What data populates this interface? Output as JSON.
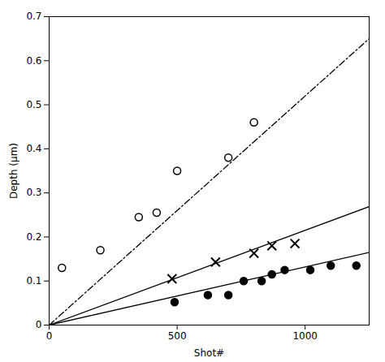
{
  "chart_data": {
    "type": "scatter",
    "title": "",
    "xlabel": "Shot#",
    "ylabel": "Depth (μm)",
    "xlim": [
      0,
      1250
    ],
    "ylim": [
      0.0,
      0.7
    ],
    "xticks": [
      0,
      500,
      1000
    ],
    "yticks": [
      0.0,
      0.1,
      0.2,
      0.3,
      0.4,
      0.5,
      0.6,
      0.7
    ],
    "grid": false,
    "series": [
      {
        "type": "line",
        "x": [
          0,
          1250
        ],
        "values": [
          0,
          0.65
        ],
        "line_style": "dashdot",
        "color": "#000000"
      },
      {
        "type": "line",
        "x": [
          0,
          1250
        ],
        "values": [
          0,
          0.26875
        ],
        "line_style": "solid",
        "color": "#000000"
      },
      {
        "type": "line",
        "x": [
          0,
          1250
        ],
        "values": [
          0,
          0.165
        ],
        "line_style": "solid",
        "color": "#000000"
      },
      {
        "type": "scatter",
        "marker": "open_circle",
        "color": "#000000",
        "x": [
          50,
          200,
          350,
          420,
          500,
          700,
          800
        ],
        "values": [
          0.13,
          0.17,
          0.245,
          0.255,
          0.35,
          0.38,
          0.46
        ]
      },
      {
        "type": "scatter",
        "marker": "x",
        "color": "#000000",
        "x": [
          480,
          650,
          800,
          870,
          960
        ],
        "values": [
          0.105,
          0.143,
          0.163,
          0.18,
          0.185
        ]
      },
      {
        "type": "scatter",
        "marker": "circle",
        "color": "#000000",
        "x": [
          490,
          620,
          700,
          760,
          830,
          870,
          920,
          1020,
          1100,
          1200
        ],
        "values": [
          0.052,
          0.068,
          0.068,
          0.1,
          0.1,
          0.115,
          0.125,
          0.125,
          0.135,
          0.135
        ]
      }
    ]
  }
}
